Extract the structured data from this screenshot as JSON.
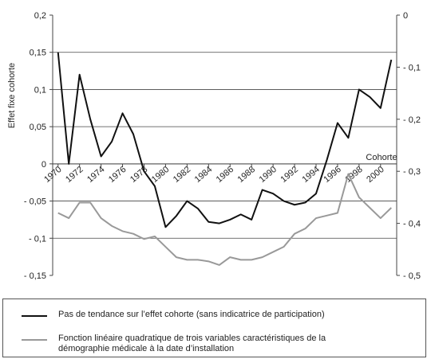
{
  "chart_data": {
    "type": "line",
    "y_label": "Effet fixe cohorte",
    "x_label": "Cohorte",
    "x": [
      1970,
      1971,
      1972,
      1973,
      1974,
      1975,
      1976,
      1977,
      1978,
      1979,
      1980,
      1981,
      1982,
      1983,
      1984,
      1985,
      1986,
      1987,
      1988,
      1989,
      1990,
      1991,
      1992,
      1993,
      1994,
      1995,
      1996,
      1997,
      1998,
      1999,
      2000,
      2001
    ],
    "xlim": [
      1969.5,
      2001.5
    ],
    "xticks": [
      1970,
      1972,
      1974,
      1976,
      1978,
      1980,
      1982,
      1984,
      1986,
      1988,
      1990,
      1992,
      1994,
      1996,
      1998,
      2000
    ],
    "ylim": [
      -0.15,
      0.2
    ],
    "yticks": [
      {
        "value": -0.15,
        "label": "- 0,15"
      },
      {
        "value": -0.1,
        "label": "- 0,1"
      },
      {
        "value": -0.05,
        "label": "- 0,05"
      },
      {
        "value": 0,
        "label": "0"
      },
      {
        "value": 0.05,
        "label": "0,05"
      },
      {
        "value": 0.1,
        "label": "0,1"
      },
      {
        "value": 0.15,
        "label": "0,15"
      },
      {
        "value": 0.2,
        "label": "0,2"
      }
    ],
    "y2lim": [
      -0.5,
      0
    ],
    "y2ticks": [
      {
        "value": -0.5,
        "label": "- 0,5"
      },
      {
        "value": -0.4,
        "label": "- 0,4"
      },
      {
        "value": -0.3,
        "label": "- 0,3"
      },
      {
        "value": -0.2,
        "label": "- 0,2"
      },
      {
        "value": -0.1,
        "label": "- 0,1"
      },
      {
        "value": 0,
        "label": "0"
      }
    ],
    "grid": true,
    "series": [
      {
        "name": "Pas de tendance sur l’effet cohorte (sans indicatrice de participation)",
        "color": "#111111",
        "values": [
          0.15,
          0.0,
          0.12,
          0.06,
          0.01,
          0.03,
          0.068,
          0.04,
          -0.01,
          -0.03,
          -0.085,
          -0.07,
          -0.05,
          -0.06,
          -0.078,
          -0.08,
          -0.075,
          -0.068,
          -0.075,
          -0.035,
          -0.04,
          -0.05,
          -0.055,
          -0.052,
          -0.04,
          0.005,
          0.055,
          0.035,
          0.1,
          0.09,
          0.075,
          0.14
        ]
      },
      {
        "name": "Fonction linéaire quadratique de trois variables caractéristiques de la démographie médicale à la date d’installation",
        "color": "#999999",
        "axis": "y2",
        "values": [
          -0.38,
          -0.39,
          -0.36,
          -0.36,
          -0.39,
          -0.405,
          -0.415,
          -0.42,
          -0.43,
          -0.425,
          -0.445,
          -0.465,
          -0.47,
          -0.47,
          -0.473,
          -0.48,
          -0.465,
          -0.47,
          -0.47,
          -0.465,
          -0.455,
          -0.445,
          -0.42,
          -0.41,
          -0.39,
          -0.385,
          -0.38,
          -0.305,
          -0.35,
          -0.37,
          -0.39,
          -0.37
        ]
      }
    ]
  }
}
